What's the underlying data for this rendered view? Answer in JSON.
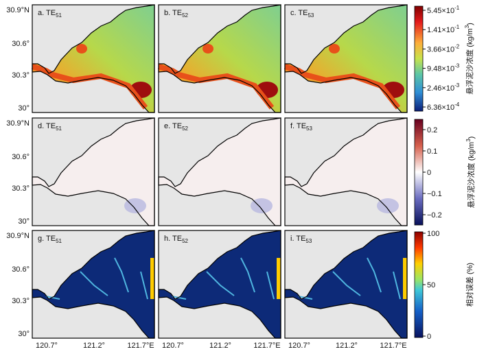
{
  "panels": [
    {
      "label": "a. TE",
      "sub": "51"
    },
    {
      "label": "b. TE",
      "sub": "52"
    },
    {
      "label": "c. TE",
      "sub": "53"
    },
    {
      "label": "d. TE",
      "sub": "51"
    },
    {
      "label": "e. TE",
      "sub": "52"
    },
    {
      "label": "f. TE",
      "sub": "53"
    },
    {
      "label": "g. TE",
      "sub": "51"
    },
    {
      "label": "h. TE",
      "sub": "52"
    },
    {
      "label": "i. TE",
      "sub": "53"
    }
  ],
  "y_ticks": [
    "30.9°N",
    "30.6°",
    "30.3°",
    "30°"
  ],
  "x_ticks": [
    "120.7°",
    "121.2°",
    "121.7°E"
  ],
  "colorbars": [
    {
      "ticks": [
        {
          "base": "5.45×10",
          "exp": "-1"
        },
        {
          "base": "1.41×10",
          "exp": "-1"
        },
        {
          "base": "3.66×10",
          "exp": "-2"
        },
        {
          "base": "9.48×10",
          "exp": "-3"
        },
        {
          "base": "2.46×10",
          "exp": "-3"
        },
        {
          "base": "6.36×10",
          "exp": "-4"
        }
      ],
      "title": "悬浮泥沙浓度 (kg/m",
      "title_sup": "3",
      "title_end": ")"
    },
    {
      "ticks": [
        "0.2",
        "0.1",
        "0",
        "−0.1",
        "−0.2"
      ],
      "title": "悬浮泥沙浓度 (kg/m",
      "title_sup": "3",
      "title_end": ")"
    },
    {
      "ticks": [
        "100",
        "50",
        "0"
      ],
      "title": "相对误差 (%)"
    }
  ]
}
